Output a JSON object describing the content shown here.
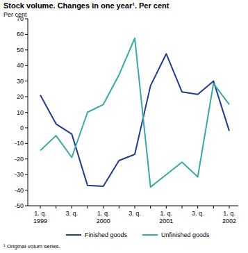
{
  "chart_data": {
    "type": "line",
    "title": "Stock volume. Changes in one year¹. Per cent",
    "y_label": "Per cent",
    "footnote": "¹ Original volum series.",
    "categories": [
      "1. q.\n1999",
      null,
      "3. q.",
      null,
      "1. q.\n2000",
      null,
      "3. q.",
      null,
      "1. q.\n2001",
      null,
      "3. q.",
      null,
      "1. q.\n2002"
    ],
    "series": [
      {
        "name": "Finished goods",
        "color": "#243a8c",
        "values": [
          21,
          2.5,
          -4,
          -37,
          -37.5,
          -21,
          -17,
          27,
          47.5,
          23,
          21.5,
          30,
          -2
        ]
      },
      {
        "name": "Unfinished goods",
        "color": "#3aa9a5",
        "values": [
          -14.5,
          -5,
          -19,
          10,
          15,
          34,
          57.5,
          -38,
          -30,
          -22,
          -31.5,
          28.5,
          15
        ]
      }
    ],
    "ylim": [
      -50,
      70
    ],
    "yticks": [
      -50,
      -40,
      -30,
      -20,
      -10,
      0,
      10,
      20,
      30,
      40,
      50,
      60,
      70
    ],
    "grid": false,
    "legend": "bottom"
  }
}
